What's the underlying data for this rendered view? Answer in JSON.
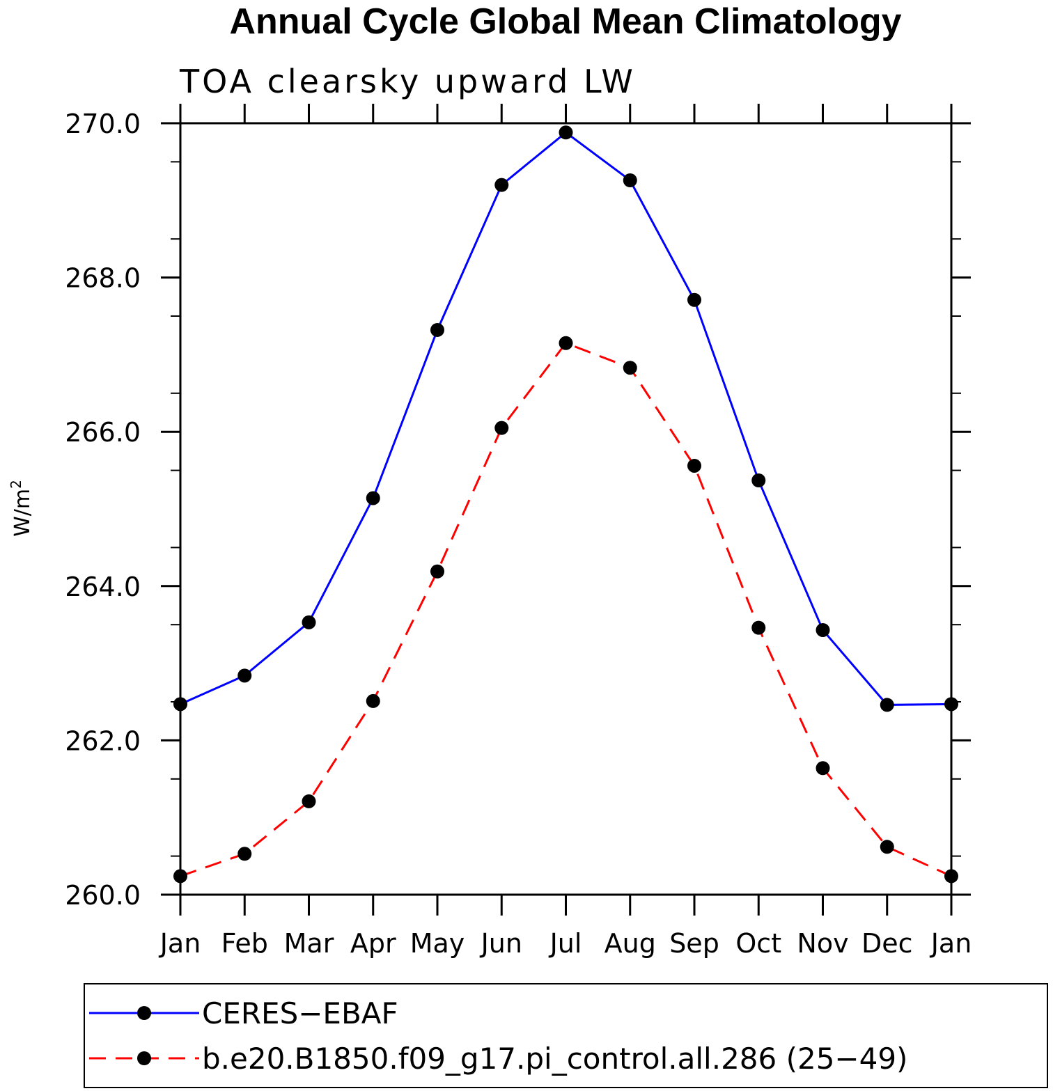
{
  "chart_data": {
    "type": "line",
    "title": "Annual Cycle Global Mean Climatology",
    "subtitle": "TOA clearsky upward LW",
    "ylabel": "W/m",
    "ylabel_superscript": "2",
    "xlabel": "",
    "ylim": [
      260.0,
      270.0
    ],
    "yticks": [
      "260.0",
      "262.0",
      "264.0",
      "266.0",
      "268.0",
      "270.0"
    ],
    "yminor_step": 0.5,
    "categories": [
      "Jan",
      "Feb",
      "Mar",
      "Apr",
      "May",
      "Jun",
      "Jul",
      "Aug",
      "Sep",
      "Oct",
      "Nov",
      "Dec",
      "Jan"
    ],
    "grid": false,
    "legend_position": "bottom",
    "series": [
      {
        "name": "CERES−EBAF",
        "color": "#0000ff",
        "dash": "solid",
        "values": [
          262.47,
          262.84,
          263.53,
          265.14,
          267.32,
          269.2,
          269.88,
          269.26,
          267.71,
          265.37,
          263.43,
          262.46,
          262.47
        ]
      },
      {
        "name": "b.e20.B1850.f09_g17.pi_control.all.286 (25−49)",
        "color": "#ff0000",
        "dash": "dashed",
        "values": [
          260.24,
          260.53,
          261.21,
          262.51,
          264.19,
          266.05,
          267.15,
          266.83,
          265.56,
          263.46,
          261.64,
          260.62,
          260.24
        ]
      }
    ]
  }
}
